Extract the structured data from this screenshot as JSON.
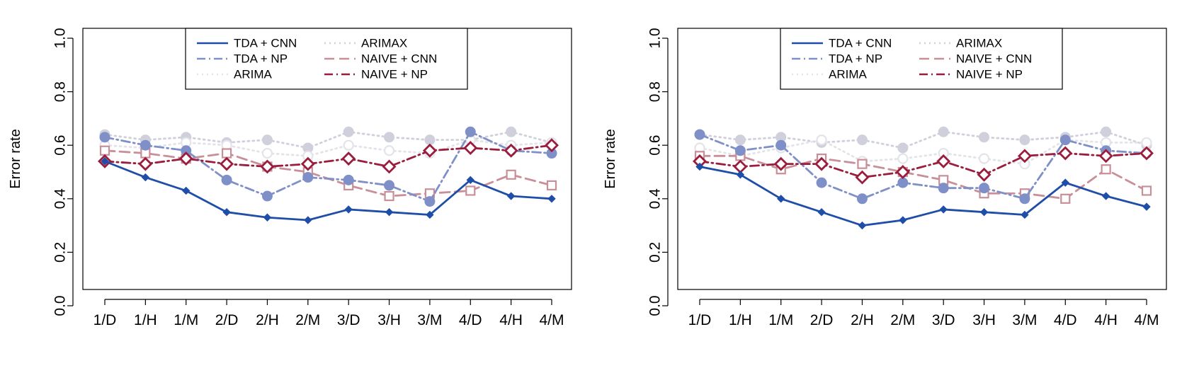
{
  "chart_data": [
    {
      "type": "line",
      "ylabel": "Error rate",
      "ylim": [
        0,
        1
      ],
      "yticks": [
        "0.0",
        "0.2",
        "0.4",
        "0.6",
        "0.8",
        "1.0"
      ],
      "categories": [
        "1/D",
        "1/H",
        "1/M",
        "2/D",
        "2/H",
        "2/M",
        "3/D",
        "3/H",
        "3/M",
        "4/D",
        "4/H",
        "4/M"
      ],
      "legend": {
        "placement": "top-center"
      },
      "series": [
        {
          "name": "TDA + CNN",
          "color": "#1f4ea8",
          "dash": "solid",
          "marker": "diamond-small",
          "values": [
            0.54,
            0.48,
            0.43,
            0.35,
            0.33,
            0.32,
            0.36,
            0.35,
            0.34,
            0.47,
            0.41,
            0.4
          ]
        },
        {
          "name": "TDA + NP",
          "color": "#7f8fc8",
          "dash": "dashdot",
          "marker": "circle-filled",
          "values": [
            0.63,
            0.6,
            0.58,
            0.47,
            0.41,
            0.48,
            0.47,
            0.45,
            0.39,
            0.65,
            0.58,
            0.57
          ]
        },
        {
          "name": "ARIMA",
          "color": "#e3e3ea",
          "dash": "dotted",
          "marker": "circle-open",
          "values": [
            0.6,
            0.59,
            0.61,
            0.6,
            0.57,
            0.56,
            0.6,
            0.58,
            0.57,
            0.62,
            0.6,
            0.61
          ]
        },
        {
          "name": "ARIMAX",
          "color": "#d0d0dc",
          "dash": "dotted",
          "marker": "circle-filled",
          "values": [
            0.64,
            0.62,
            0.63,
            0.61,
            0.62,
            0.59,
            0.65,
            0.63,
            0.62,
            0.62,
            0.65,
            0.61
          ]
        },
        {
          "name": "NAIVE + CNN",
          "color": "#c98f98",
          "dash": "longdash",
          "marker": "square-open",
          "values": [
            0.58,
            0.57,
            0.55,
            0.57,
            0.52,
            0.5,
            0.45,
            0.41,
            0.42,
            0.43,
            0.49,
            0.45
          ]
        },
        {
          "name": "NAIVE + NP",
          "color": "#9b1d3e",
          "dash": "dashdot",
          "marker": "diamond-open",
          "values": [
            0.54,
            0.53,
            0.55,
            0.53,
            0.52,
            0.53,
            0.55,
            0.52,
            0.58,
            0.59,
            0.58,
            0.6
          ]
        }
      ]
    },
    {
      "type": "line",
      "ylabel": "Error rate",
      "ylim": [
        0,
        1
      ],
      "yticks": [
        "0.0",
        "0.2",
        "0.4",
        "0.6",
        "0.8",
        "1.0"
      ],
      "categories": [
        "1/D",
        "1/H",
        "1/M",
        "2/D",
        "2/H",
        "2/M",
        "3/D",
        "3/H",
        "3/M",
        "4/D",
        "4/H",
        "4/M"
      ],
      "legend": {
        "placement": "top-center"
      },
      "series": [
        {
          "name": "TDA + CNN",
          "color": "#1f4ea8",
          "dash": "solid",
          "marker": "diamond-small",
          "values": [
            0.52,
            0.49,
            0.4,
            0.35,
            0.3,
            0.32,
            0.36,
            0.35,
            0.34,
            0.46,
            0.41,
            0.37
          ]
        },
        {
          "name": "TDA + NP",
          "color": "#7f8fc8",
          "dash": "dashdot",
          "marker": "circle-filled",
          "values": [
            0.64,
            0.58,
            0.6,
            0.46,
            0.4,
            0.46,
            0.44,
            0.44,
            0.4,
            0.62,
            0.58,
            0.57
          ]
        },
        {
          "name": "ARIMA",
          "color": "#e3e3ea",
          "dash": "dotted",
          "marker": "circle-open",
          "values": [
            0.59,
            0.56,
            0.59,
            0.62,
            0.54,
            0.55,
            0.57,
            0.55,
            0.53,
            0.62,
            0.61,
            0.61
          ]
        },
        {
          "name": "ARIMAX",
          "color": "#d0d0dc",
          "dash": "dotted",
          "marker": "circle-filled",
          "values": [
            0.64,
            0.62,
            0.63,
            0.61,
            0.62,
            0.59,
            0.65,
            0.63,
            0.62,
            0.63,
            0.65,
            0.6
          ]
        },
        {
          "name": "NAIVE + CNN",
          "color": "#c98f98",
          "dash": "longdash",
          "marker": "square-open",
          "values": [
            0.56,
            0.56,
            0.51,
            0.55,
            0.53,
            0.5,
            0.47,
            0.42,
            0.42,
            0.4,
            0.51,
            0.43
          ]
        },
        {
          "name": "NAIVE + NP",
          "color": "#9b1d3e",
          "dash": "dashdot",
          "marker": "diamond-open",
          "values": [
            0.54,
            0.52,
            0.53,
            0.53,
            0.48,
            0.5,
            0.54,
            0.49,
            0.56,
            0.57,
            0.56,
            0.57
          ]
        }
      ]
    }
  ]
}
